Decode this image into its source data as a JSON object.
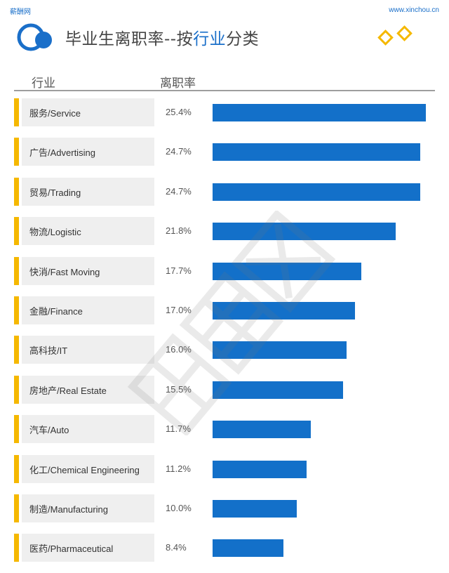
{
  "header": {
    "brand": "薪酬网",
    "url": "www.xinchou.cn",
    "title_prefix": "毕业生离职率--按",
    "title_highlight": "行业",
    "title_suffix": "分类"
  },
  "colors": {
    "bar": "#1370c9",
    "accent": "#f5b800",
    "label_bg": "#efefef",
    "brand": "#1a6fc9"
  },
  "chart_data": {
    "type": "bar",
    "orientation": "horizontal",
    "title": "毕业生离职率--按行业分类",
    "column_headers": [
      "行业",
      "离职率"
    ],
    "categories": [
      "服务/Service",
      "广告/Advertising",
      "贸易/Trading",
      "物流/Logistic",
      "快消/Fast Moving",
      "金融/Finance",
      "高科技/IT",
      "房地产/Real Estate",
      "汽车/Auto",
      "化工/Chemical Engineering",
      "制造/Manufacturing",
      "医药/Pharmaceutical"
    ],
    "values": [
      25.4,
      24.7,
      24.7,
      21.8,
      17.7,
      17.0,
      16.0,
      15.5,
      11.7,
      11.2,
      10.0,
      8.4
    ],
    "value_labels": [
      "25.4%",
      "24.7%",
      "24.7%",
      "21.8%",
      "17.7%",
      "17.0%",
      "16.0%",
      "15.5%",
      "11.7%",
      "11.2%",
      "10.0%",
      "8.4%"
    ],
    "unit": "%",
    "xlim": [
      0,
      25.4
    ]
  }
}
